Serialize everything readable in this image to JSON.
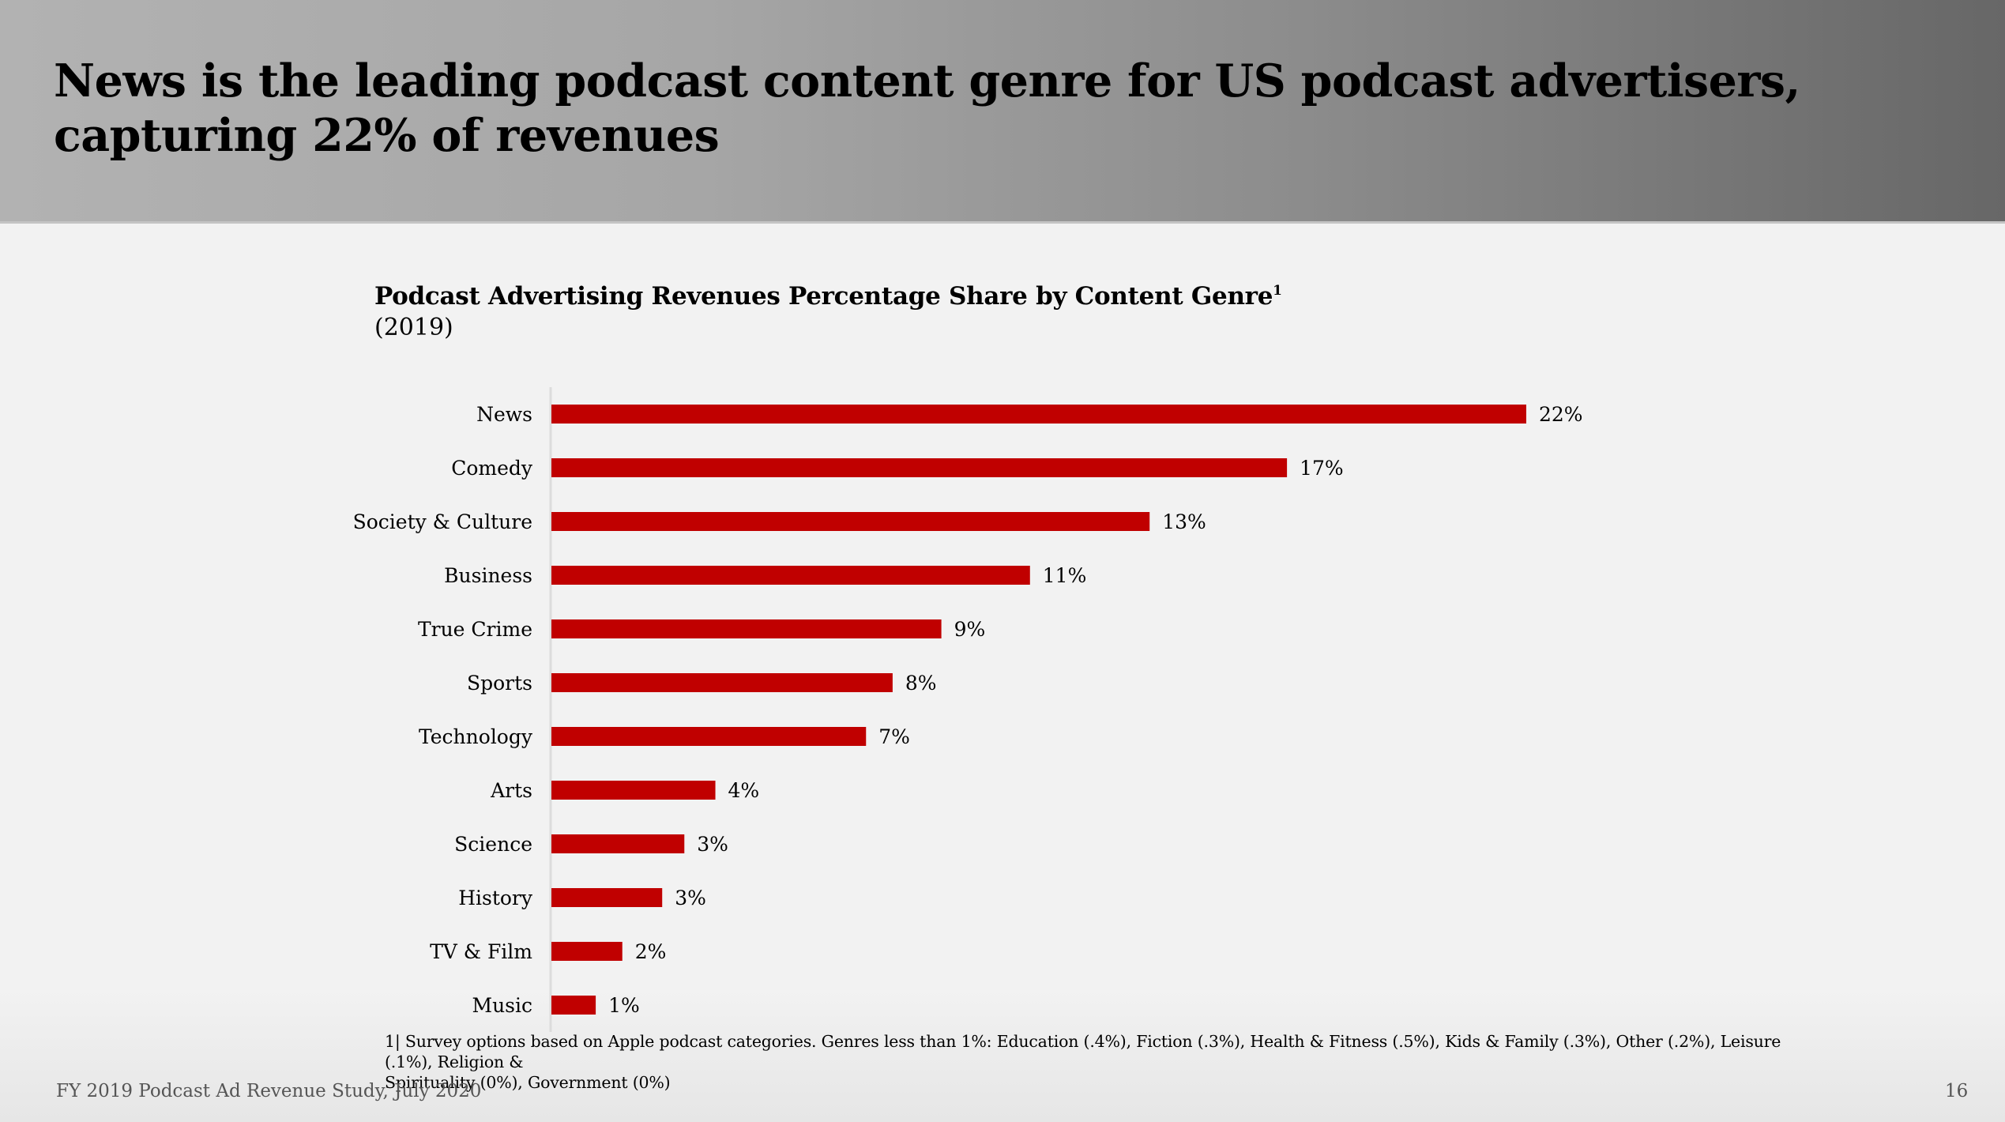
{
  "slide": {
    "title": "News is the leading podcast content genre for US podcast advertisers, capturing 22% of revenues",
    "title_lines": [
      "News is the leading podcast content genre for US podcast advertisers,",
      "capturing 22% of revenues"
    ],
    "footer_source": "FY 2019 Podcast Ad Revenue Study, July 2020",
    "page_number": "16",
    "colors": {
      "bar": "#c00000",
      "header_gradient_left": "#b2b2b2",
      "header_gradient_right": "#676767",
      "background": "#f2f2f2"
    }
  },
  "chart_data": {
    "type": "bar",
    "orientation": "horizontal",
    "title": "Podcast Advertising Revenues Percentage Share by Content Genre",
    "title_superscript": "1",
    "subtitle": "(2019)",
    "xlabel": "",
    "ylabel": "",
    "unit": "%",
    "grid": false,
    "legend": "none",
    "xlim": [
      0,
      22
    ],
    "categories": [
      "News",
      "Comedy",
      "Society & Culture",
      "Business",
      "True Crime",
      "Sports",
      "Technology",
      "Arts",
      "Science",
      "History",
      "TV & Film",
      "Music"
    ],
    "values": [
      22,
      17,
      13,
      11,
      9,
      8,
      7,
      4,
      3,
      3,
      2,
      1
    ],
    "bar_values_estimated": [
      22.0,
      16.6,
      13.5,
      10.8,
      8.8,
      7.7,
      7.1,
      3.7,
      3.0,
      2.5,
      1.6,
      1.0
    ],
    "data_labels": [
      "22%",
      "17%",
      "13%",
      "11%",
      "9%",
      "8%",
      "7%",
      "4%",
      "3%",
      "3%",
      "2%",
      "1%"
    ],
    "footnote": "1| Survey options based on Apple podcast categories. Genres less than 1%: Education (.4%), Fiction (.3%), Health & Fitness (.5%), Kids & Family (.3%), Other (.2%), Leisure (.1%), Religion & Spirituality (0%), Government (0%)",
    "footnote_lines": [
      "1| Survey options based on Apple podcast categories. Genres less than 1%: Education (.4%), Fiction (.3%), Health & Fitness (.5%), Kids & Family (.3%), Other (.2%), Leisure (.1%), Religion &",
      "Spirituality (0%), Government (0%)"
    ]
  }
}
